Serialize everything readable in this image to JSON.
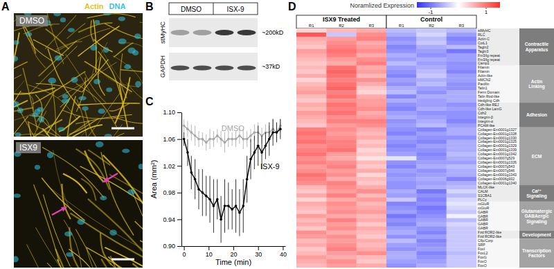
{
  "chart_data": [
    {
      "type": "image",
      "title": "A",
      "legend": [
        {
          "name": "Actin",
          "color": "#e3c21c"
        },
        {
          "name": "DNA",
          "color": "#36c3df"
        }
      ],
      "images": [
        "DMSO",
        "ISX9"
      ]
    },
    {
      "type": "blot",
      "title": "B",
      "lanes": [
        "DMSO",
        "ISX-9"
      ],
      "bands": [
        {
          "name": "stMyHC",
          "size": "~200kD"
        },
        {
          "name": "GAPDH",
          "size": "~37kD"
        }
      ]
    },
    {
      "type": "line",
      "title": "C",
      "x_label": "Time (min)",
      "y_label": "Area (mm²)",
      "x": [
        0,
        1.5,
        3,
        4.5,
        6,
        7.5,
        9,
        10.5,
        12,
        13.5,
        15,
        16.5,
        18,
        19.5,
        21,
        22.5,
        24,
        25.5,
        27,
        28.5,
        30,
        31.5,
        33,
        34.5,
        36,
        37.5,
        39
      ],
      "series": [
        {
          "name": "DMSO",
          "color": "#a6a6a6",
          "marker": "circle",
          "values": [
            1.08,
            1.075,
            1.07,
            1.065,
            1.06,
            1.06,
            1.055,
            1.06,
            1.06,
            1.065,
            1.06,
            1.055,
            1.06,
            1.06,
            1.06,
            1.065,
            1.06,
            1.06,
            1.065,
            1.07,
            1.07,
            1.065,
            1.07,
            1.07,
            1.075,
            1.07,
            1.08
          ],
          "errors": [
            0.01,
            0.012,
            0.012,
            0.015,
            0.012,
            0.01,
            0.012,
            0.015,
            0.012,
            0.01,
            0.012,
            0.015,
            0.012,
            0.01,
            0.012,
            0.012,
            0.015,
            0.012,
            0.01,
            0.012,
            0.015,
            0.012,
            0.012,
            0.01,
            0.015,
            0.012,
            0.01
          ]
        },
        {
          "name": "ISX-9",
          "color": "#000000",
          "marker": "circle",
          "values": [
            1.06,
            1.04,
            1.01,
            1.0,
            0.985,
            0.98,
            0.975,
            0.97,
            0.96,
            0.97,
            0.94,
            0.96,
            0.96,
            0.955,
            0.96,
            0.95,
            0.96,
            1.0,
            1.03,
            1.04,
            1.05,
            1.04,
            1.05,
            1.06,
            1.07,
            1.07,
            1.075
          ],
          "errors": [
            0.01,
            0.02,
            0.025,
            0.03,
            0.03,
            0.035,
            0.03,
            0.035,
            0.04,
            0.03,
            0.035,
            0.04,
            0.035,
            0.03,
            0.04,
            0.035,
            0.04,
            0.035,
            0.03,
            0.025,
            0.03,
            0.025,
            0.02,
            0.025,
            0.02,
            0.015,
            0.015
          ]
        }
      ],
      "xlim": [
        -1,
        41
      ],
      "xticks": [
        0,
        10,
        20,
        30,
        40
      ],
      "ylim": [
        0.9,
        1.1
      ],
      "yticks": [
        {
          "value": 0.9,
          "label": "0.90"
        },
        0.94,
        0.98,
        1.02,
        1.06,
        {
          "value": 1.1,
          "label": "1.10"
        }
      ]
    },
    {
      "type": "heatmap",
      "title": "D",
      "column_groups": [
        {
          "name": "ISX9 Treated",
          "columns": [
            "R1",
            "R2",
            "R3"
          ]
        },
        {
          "name": "Control",
          "columns": [
            "R1",
            "R2",
            "R3"
          ]
        }
      ],
      "colorbar": {
        "title": "Noramlized Expression",
        "range": [
          -1.5,
          1.5
        ],
        "ticks": [
          -1,
          1
        ],
        "colors": [
          "#3232ff",
          "#ffffff",
          "#ff2c2c"
        ]
      },
      "row_groups": [
        {
          "name": [
            "Contractile",
            "Apparatus"
          ],
          "rows": [
            "stMyHC",
            "RLC",
            "Actin-C",
            "CotL1",
            "Tagln2",
            "Tagln3",
            "Fm3/lg repeat",
            "Fm3/lg repeat",
            "Camp1"
          ],
          "cells": [
            [
              0.3,
              0.5,
              0.6,
              -0.5,
              -0.4,
              -0.5
            ],
            [
              1.2,
              -0.4,
              0.8,
              -0.6,
              -0.3,
              -0.7
            ],
            [
              0.6,
              0.7,
              0.9,
              -0.8,
              -0.5,
              -0.9
            ],
            [
              0.5,
              0.8,
              0.6,
              -0.7,
              -0.4,
              -0.8
            ],
            [
              0.4,
              0.9,
              0.7,
              -0.9,
              -0.6,
              -0.5
            ],
            [
              0.7,
              1.0,
              0.8,
              -0.8,
              -0.7,
              -1.0
            ],
            [
              0.6,
              0.9,
              0.6,
              -0.6,
              -0.8,
              -0.7
            ],
            [
              0.5,
              0.7,
              0.8,
              -0.7,
              -0.6,
              -0.7
            ],
            [
              0.4,
              0.6,
              0.9,
              -0.5,
              -0.7,
              -0.8
            ]
          ]
        },
        {
          "name": [
            "Actin",
            "Linking"
          ],
          "rows": [
            "Filamin",
            "Filamin",
            "Actin-like",
            "HMCN2",
            "Paxillin",
            "Talin1",
            "Ferm Domain",
            "Talin Rod-like",
            "Hedgling Cdh"
          ],
          "cells": [
            [
              0.5,
              1.0,
              0.6,
              -0.7,
              -0.6,
              -0.8
            ],
            [
              0.4,
              1.1,
              0.7,
              -0.8,
              -0.5,
              -0.9
            ],
            [
              0.6,
              1.0,
              0.5,
              -0.9,
              -0.4,
              -0.7
            ],
            [
              0.3,
              0.9,
              0.8,
              -0.7,
              -0.6,
              -0.7
            ],
            [
              0.5,
              1.0,
              0.6,
              -0.8,
              -0.5,
              -0.8
            ],
            [
              0.6,
              1.1,
              0.4,
              -0.6,
              -0.7,
              -0.8
            ],
            [
              0.7,
              0.9,
              0.3,
              -0.5,
              -0.8,
              -0.6
            ],
            [
              0.5,
              1.0,
              0.6,
              -0.9,
              -0.6,
              -0.6
            ],
            [
              0.4,
              0.8,
              0.7,
              -0.6,
              -0.7,
              -0.6
            ]
          ]
        },
        {
          "name": [
            "Adhesion"
          ],
          "rows": [
            "Cdh-like REJ",
            "Cdh-like LamG",
            "Cdh2",
            "Integrin-β",
            "Integrin-α",
            "PCAM-like"
          ],
          "cells": [
            [
              0.6,
              1.0,
              0.7,
              -0.8,
              -0.7,
              -0.8
            ],
            [
              0.5,
              0.9,
              0.8,
              -0.9,
              -0.6,
              -0.7
            ],
            [
              0.7,
              1.0,
              0.6,
              -0.7,
              -0.8,
              -0.8
            ],
            [
              0.6,
              0.8,
              0.7,
              -0.6,
              -0.7,
              -0.8
            ],
            [
              0.5,
              0.9,
              0.9,
              -0.8,
              -0.6,
              -0.9
            ],
            [
              0.4,
              0.7,
              0.8,
              -0.7,
              -0.5,
              -0.7
            ]
          ]
        },
        {
          "name": [
            "ECM"
          ],
          "rows": [
            "Collagen-Em0001g1327",
            "Collagen-Em0001g1328",
            "Collagen-Em0001g1330",
            "Collagen-Em0001g1325",
            "Collagen-Em0001g1329",
            "Collagen-Em0001g1339",
            "Collagen-Em0001g1342",
            "Collagen-Em0007g529",
            "Collagen-Em0001g1326",
            "Collagen-Em0007g543",
            "Collagen-Em0007g546",
            "Collagen-Em0001g1343",
            "Collagen-Em0006g932",
            "Collagen-Em0001g1340"
          ],
          "cells": [
            [
              0.9,
              0.8,
              0.6,
              -0.8,
              -0.9,
              -0.6
            ],
            [
              1.0,
              0.7,
              0.5,
              -0.9,
              -0.7,
              -0.6
            ],
            [
              0.9,
              0.8,
              0.6,
              -0.7,
              -0.8,
              -0.8
            ],
            [
              1.0,
              0.9,
              0.4,
              -0.8,
              -0.9,
              -0.6
            ],
            [
              0.8,
              0.9,
              0.5,
              -0.9,
              -0.7,
              -0.6
            ],
            [
              0.9,
              1.0,
              0.3,
              -0.8,
              -0.8,
              -0.6
            ],
            [
              1.0,
              0.7,
              0.4,
              -0.7,
              -0.9,
              -0.5
            ],
            [
              0.8,
              0.6,
              0.2,
              -0.2,
              -0.8,
              -0.6
            ],
            [
              0.9,
              0.8,
              0.5,
              -0.8,
              -0.7,
              -0.7
            ],
            [
              0.7,
              0.9,
              0.4,
              -0.9,
              -0.6,
              -0.5
            ],
            [
              0.8,
              0.7,
              0.6,
              -0.7,
              -0.8,
              -0.6
            ],
            [
              1.0,
              0.8,
              0.3,
              -0.8,
              -0.7,
              -0.6
            ],
            [
              0.9,
              0.6,
              0.5,
              -0.7,
              -0.6,
              -0.9
            ],
            [
              0.8,
              0.9,
              0.4,
              -0.8,
              -0.7,
              -0.6
            ]
          ]
        },
        {
          "name": [
            "Ca²⁺",
            "Signaling"
          ],
          "rows": [
            "MLCK-like",
            "CALM",
            "S1CBA1",
            "PLCγ"
          ],
          "cells": [
            [
              0.5,
              0.8,
              0.6,
              -0.8,
              -0.6,
              -0.5
            ],
            [
              0.4,
              0.7,
              0.8,
              -0.6,
              -1.0,
              -0.3
            ],
            [
              0.6,
              0.9,
              0.5,
              -0.7,
              -0.8,
              -0.5
            ],
            [
              0.3,
              0.6,
              0.7,
              -0.4,
              -0.9,
              -0.3
            ]
          ]
        },
        {
          "name": [
            "Glutamatergic",
            "GABAergic",
            "Signaling"
          ],
          "rows": [
            "mGluR",
            "mGluR",
            "GABR",
            "GABR",
            "GABR",
            "GABR",
            "GABR"
          ],
          "cells": [
            [
              0.6,
              0.8,
              0.5,
              -0.9,
              -0.8,
              -0.2
            ],
            [
              0.5,
              0.7,
              0.6,
              -0.8,
              -1.0,
              -0.3
            ],
            [
              0.4,
              0.8,
              0.7,
              -0.7,
              -0.9,
              -0.4
            ],
            [
              0.7,
              0.6,
              0.5,
              -1.0,
              -0.8,
              -0.1
            ],
            [
              0.5,
              0.9,
              0.6,
              -0.8,
              -0.7,
              -0.5
            ],
            [
              0.6,
              0.7,
              0.4,
              -0.9,
              -0.6,
              -0.3
            ],
            [
              0.4,
              0.8,
              0.6,
              -0.7,
              -0.8,
              -0.4
            ]
          ]
        },
        {
          "name": [
            "Development"
          ],
          "rows": [
            "Fzd ROR2-like",
            "Fzd ROR2-like"
          ],
          "cells": [
            [
              0.8,
              0.6,
              0.5,
              -0.6,
              -0.9,
              -0.4
            ],
            [
              0.7,
              0.8,
              0.4,
              -0.8,
              -0.7,
              -0.4
            ]
          ]
        },
        {
          "name": [
            "Transcription",
            "Factors"
          ],
          "rows": [
            "Cflp/Corp",
            "SRP",
            "FoxI",
            "FoxL2",
            "FoxG",
            "FoxO",
            "FoxO"
          ],
          "cells": [
            [
              0.5,
              0.7,
              0.6,
              -0.5,
              -0.9,
              -0.4
            ],
            [
              0.6,
              0.8,
              0.5,
              -0.7,
              -0.8,
              -0.4
            ],
            [
              0.4,
              0.9,
              0.6,
              -0.8,
              -0.7,
              -0.4
            ],
            [
              0.5,
              0.7,
              0.8,
              -0.6,
              -0.9,
              -0.5
            ],
            [
              0.7,
              0.6,
              0.5,
              -0.6,
              -0.8,
              -0.4
            ],
            [
              0.6,
              0.8,
              0.4,
              -0.7,
              -0.7,
              -0.4
            ],
            [
              0.5,
              0.7,
              0.6,
              -0.8,
              -0.6,
              -0.4
            ]
          ]
        }
      ]
    }
  ]
}
